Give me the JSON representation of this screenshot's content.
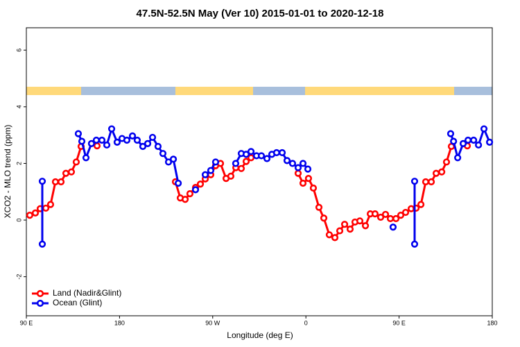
{
  "chart_data": {
    "type": "line",
    "title": "47.5N-52.5N May (Ver 10)   2015-01-01 to 2020-12-18",
    "x_label": "Longitude (deg E)",
    "y_label": "XCO2 - MLO trend (ppm)",
    "xlim": [
      90,
      540
    ],
    "ylim": [
      -3.38,
      6.79
    ],
    "xticks": [
      {
        "value": 90,
        "label": "90 E"
      },
      180,
      {
        "value": 270,
        "label": "90 W"
      },
      {
        "value": 360,
        "label": "0"
      },
      {
        "value": 450,
        "label": "90 E"
      },
      {
        "value": 540,
        "label": "180"
      }
    ],
    "yticks": [
      -2,
      0,
      2,
      4,
      6
    ],
    "legend": "bottom-left",
    "series": [
      {
        "name": "Land (Nadir&Glint)",
        "color": "#ff0000",
        "x": [
          93.3,
          98.7,
          103.4,
          108.8,
          113.4,
          118.1,
          123.5,
          128.2,
          133.5,
          138.2,
          142.9,
          null,
          158.3,
          null,
          234.0,
          238.7,
          243.4,
          248.0,
          253.4,
          258.1,
          262.8,
          268.1,
          272.8,
          277.5,
          282.9,
          287.5,
          292.3,
          297.6,
          302.3,
          307.0,
          null,
          352.5,
          357.2,
          362.5,
          367.2,
          372.6,
          377.3,
          382.6,
          388.0,
          392.7,
          397.4,
          402.7,
          407.4,
          412.1,
          417.5,
          422.2,
          426.8,
          432.2,
          436.9,
          441.6,
          447.0,
          451.6,
          456.3,
          461.7,
          466.4,
          471.1,
          475.7,
          481.1,
          485.8,
          491.2,
          495.8,
          500.5,
          null,
          515.9
        ],
        "values": [
          0.17,
          0.25,
          0.4,
          0.42,
          0.55,
          1.35,
          1.35,
          1.65,
          1.7,
          2.05,
          2.6,
          null,
          2.62,
          null,
          1.35,
          0.78,
          0.73,
          0.93,
          1.15,
          1.27,
          1.45,
          1.6,
          1.92,
          2.0,
          1.47,
          1.55,
          1.85,
          1.82,
          2.07,
          2.2,
          null,
          1.65,
          1.3,
          1.47,
          1.13,
          0.45,
          0.07,
          -0.52,
          -0.62,
          -0.38,
          -0.15,
          -0.32,
          -0.07,
          -0.03,
          -0.2,
          0.22,
          0.22,
          0.1,
          0.2,
          0.05,
          0.05,
          0.17,
          0.27,
          0.4,
          0.42,
          0.55,
          1.35,
          1.35,
          1.65,
          1.7,
          2.05,
          2.6,
          null,
          2.62
        ]
      },
      {
        "name": "Ocean (Glint)",
        "color": "#0000ee",
        "x": [
          105.4,
          105.4,
          null,
          140.2,
          143.6,
          147.6,
          152.9,
          157.6,
          163.0,
          167.7,
          172.4,
          177.7,
          182.4,
          187.1,
          192.5,
          197.1,
          202.5,
          207.2,
          211.9,
          217.2,
          221.9,
          227.3,
          232.0,
          236.7,
          null,
          253.4,
          null,
          262.8,
          268.1,
          272.8,
          null,
          292.2,
          297.6,
          302.3,
          307.0,
          312.3,
          317.0,
          322.4,
          327.1,
          331.7,
          337.1,
          341.8,
          347.1,
          352.5,
          357.2,
          361.9,
          null,
          444.2,
          null,
          465.0,
          465.0,
          null,
          499.8,
          502.6,
          506.6,
          511.9,
          516.6,
          522.0,
          526.7,
          532.0,
          537.4
        ],
        "values": [
          1.37,
          -0.85,
          null,
          3.05,
          2.78,
          2.2,
          2.7,
          2.82,
          2.82,
          2.65,
          3.22,
          2.75,
          2.88,
          2.82,
          2.97,
          2.82,
          2.6,
          2.7,
          2.92,
          2.6,
          2.35,
          2.05,
          2.15,
          1.3,
          null,
          1.07,
          null,
          1.6,
          1.75,
          2.05,
          null,
          2.0,
          2.35,
          2.32,
          2.42,
          2.27,
          2.27,
          2.17,
          2.32,
          2.38,
          2.38,
          2.1,
          2.0,
          1.85,
          2.0,
          1.8,
          null,
          -0.25,
          null,
          1.37,
          -0.85,
          null,
          3.05,
          2.78,
          2.2,
          2.7,
          2.82,
          2.82,
          2.65,
          3.22,
          2.75
        ]
      }
    ]
  }
}
